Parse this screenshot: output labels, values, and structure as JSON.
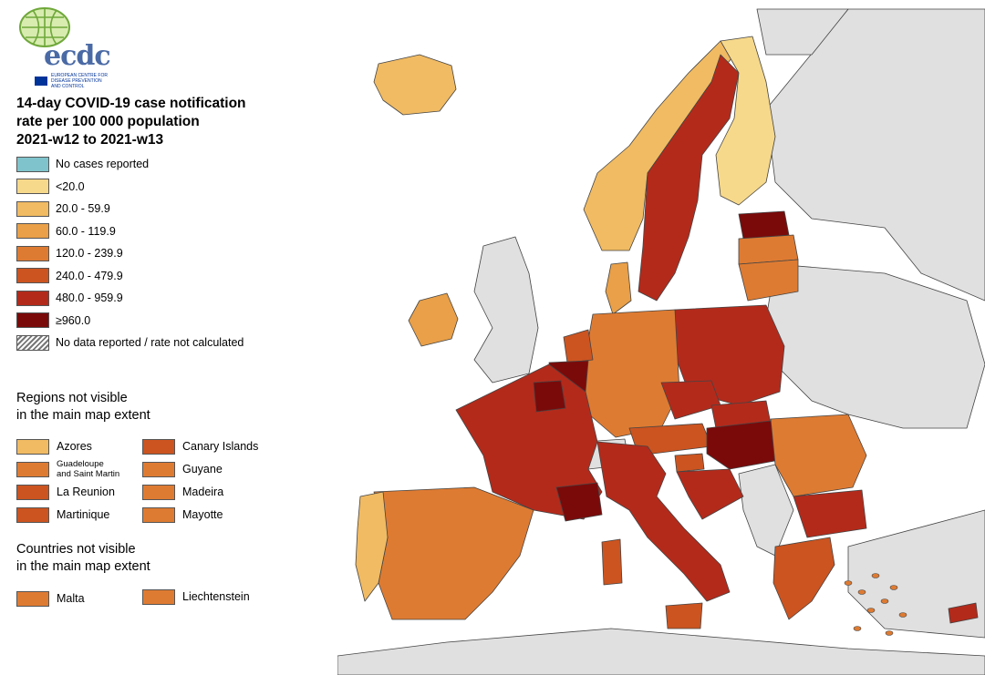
{
  "org": {
    "name": "ecdc",
    "subtitle_lines": [
      "EUROPEAN CENTRE FOR",
      "DISEASE PREVENTION",
      "AND CONTROL"
    ]
  },
  "title_lines": [
    "14-day COVID-19 case notification",
    "rate per 100 000 population",
    "2021-w12 to 2021-w13"
  ],
  "legend": [
    {
      "label": "No cases reported",
      "color": "#7fc4cc"
    },
    {
      "label": "<20.0",
      "color": "#f7d98b"
    },
    {
      "label": "20.0 - 59.9",
      "color": "#f1bb63"
    },
    {
      "label": "60.0 - 119.9",
      "color": "#e9a048"
    },
    {
      "label": "120.0 - 239.9",
      "color": "#de7b32"
    },
    {
      "label": "240.0 - 479.9",
      "color": "#cc5420"
    },
    {
      "label": "480.0 - 959.9",
      "color": "#b32a1b"
    },
    {
      "label": "≥960.0",
      "color": "#7a0a0a"
    },
    {
      "label": "No data reported / rate not calculated",
      "color": "hatch"
    }
  ],
  "regions_section": [
    "Regions not visible",
    "in the main map extent"
  ],
  "regions": [
    {
      "label": "Azores",
      "color": "#f1bb63"
    },
    {
      "label": "Canary Islands",
      "color": "#cc5420"
    },
    {
      "label": "Guadeloupe and Saint Martin",
      "label_lines": [
        "Guadeloupe",
        "and Saint Martin"
      ],
      "color": "#de7b32"
    },
    {
      "label": "Guyane",
      "color": "#de7b32"
    },
    {
      "label": "La Reunion",
      "color": "#cc5420"
    },
    {
      "label": "Madeira",
      "color": "#de7b32"
    },
    {
      "label": "Martinique",
      "color": "#cc5420"
    },
    {
      "label": "Mayotte",
      "color": "#de7b32"
    }
  ],
  "countries_section": [
    "Countries not visible",
    "in the main map extent"
  ],
  "countries": [
    {
      "label": "Malta",
      "color": "#de7b32"
    },
    {
      "label": "Liechtenstein",
      "color": "#de7b32"
    }
  ],
  "map_colors": {
    "non_eu": "#e0e0e0",
    "border": "#444444",
    "sea": "#ffffff"
  }
}
